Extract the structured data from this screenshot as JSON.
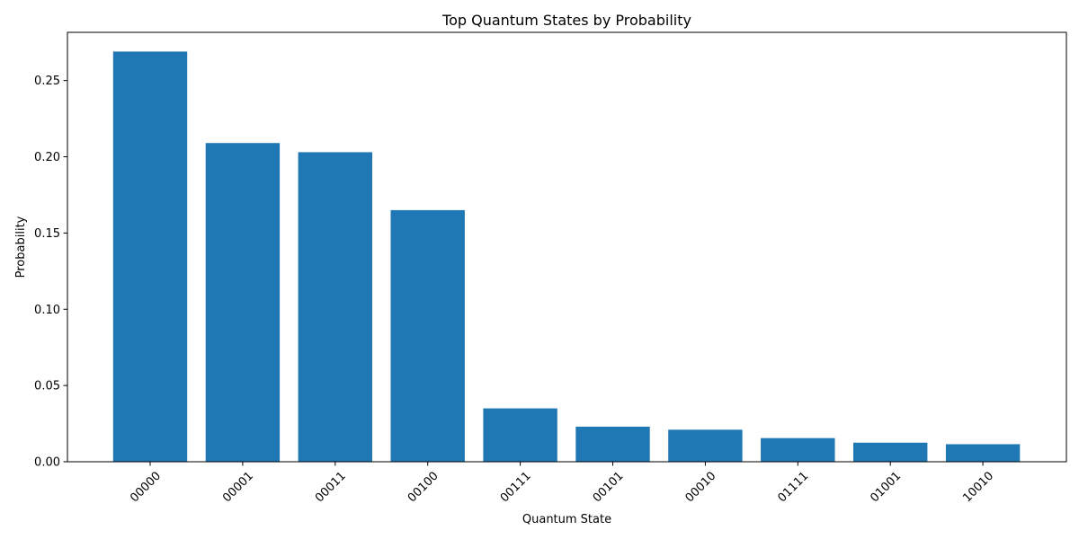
{
  "chart_data": {
    "type": "bar",
    "title": "Top Quantum States by Probability",
    "xlabel": "Quantum State",
    "ylabel": "Probability",
    "categories": [
      "00000",
      "00001",
      "00011",
      "00100",
      "00111",
      "00101",
      "00010",
      "01111",
      "01001",
      "10010"
    ],
    "values": [
      0.269,
      0.209,
      0.203,
      0.165,
      0.035,
      0.023,
      0.021,
      0.0155,
      0.0125,
      0.0115
    ],
    "ylim": [
      0,
      0.2816
    ],
    "yticks": [
      0.0,
      0.05,
      0.1,
      0.15,
      0.2,
      0.25
    ],
    "ytick_labels": [
      "0.00",
      "0.05",
      "0.10",
      "0.15",
      "0.20",
      "0.25"
    ],
    "xtick_rotation_deg": 45,
    "grid": false,
    "legend": "none",
    "bar_color": "#1f77b4"
  }
}
